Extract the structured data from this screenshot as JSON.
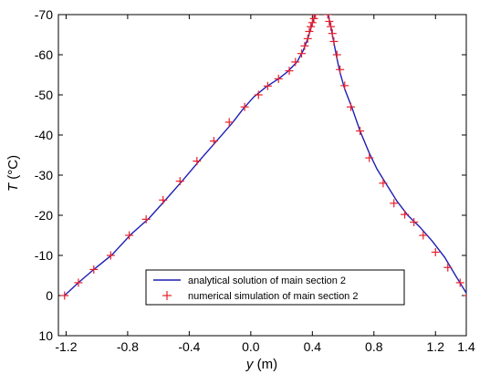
{
  "chart_data": {
    "type": "line",
    "xlabel_var": "y",
    "xlabel_unit": " (m)",
    "ylabel_var": "T",
    "ylabel_unit": " (°C)",
    "xlim": [
      -1.25,
      1.4
    ],
    "ylim": [
      10,
      -70
    ],
    "xticks": [
      -1.2,
      -0.8,
      -0.4,
      0.0,
      0.4,
      0.8,
      1.2,
      1.4
    ],
    "xtick_labels": [
      "-1.2",
      "-0.8",
      "-0.4",
      "0.0",
      "0.4",
      "0.8",
      "1.2",
      "1.4"
    ],
    "yticks": [
      -70,
      -60,
      -50,
      -40,
      -30,
      -20,
      -10,
      0,
      10
    ],
    "ytick_labels": [
      "-70",
      "-60",
      "-50",
      "-40",
      "-30",
      "-20",
      "-10",
      "0",
      "10"
    ],
    "legend_position": "bottom-center",
    "series": [
      {
        "name": "analytical solution of main section 2",
        "style": "line",
        "color": "#1f1fb4",
        "segments": [
          [
            [
              -1.21,
              0
            ],
            [
              -1.12,
              -3.2
            ],
            [
              -1.02,
              -6.5
            ],
            [
              -0.9,
              -10.2
            ],
            [
              -0.78,
              -15.2
            ],
            [
              -0.66,
              -19.3
            ],
            [
              -0.55,
              -24
            ],
            [
              -0.44,
              -28.8
            ],
            [
              -0.33,
              -33.8
            ],
            [
              -0.22,
              -38.6
            ],
            [
              -0.12,
              -43
            ],
            [
              -0.05,
              -46.5
            ],
            [
              0.02,
              -49.5
            ],
            [
              0.1,
              -52
            ],
            [
              0.18,
              -54
            ],
            [
              0.24,
              -55.8
            ],
            [
              0.3,
              -58.2
            ],
            [
              0.34,
              -61
            ],
            [
              0.37,
              -64
            ],
            [
              0.39,
              -66.5
            ],
            [
              0.405,
              -68.5
            ],
            [
              0.42,
              -70.5
            ]
          ],
          [
            [
              0.5,
              -70.5
            ],
            [
              0.52,
              -67
            ],
            [
              0.54,
              -63
            ],
            [
              0.56,
              -59
            ],
            [
              0.58,
              -55.5
            ],
            [
              0.61,
              -51.5
            ],
            [
              0.66,
              -46.5
            ],
            [
              0.71,
              -41
            ],
            [
              0.77,
              -35.5
            ],
            [
              0.82,
              -31.5
            ],
            [
              0.88,
              -27.8
            ],
            [
              0.95,
              -23.5
            ],
            [
              1.02,
              -20
            ],
            [
              1.1,
              -17
            ],
            [
              1.18,
              -13.5
            ],
            [
              1.26,
              -9.5
            ],
            [
              1.33,
              -5
            ],
            [
              1.41,
              0
            ]
          ]
        ]
      },
      {
        "name": "numerical simulation of main section 2",
        "style": "marker",
        "marker": "+",
        "color": "#e8202a",
        "points": [
          [
            -1.21,
            0
          ],
          [
            -1.12,
            -3.2
          ],
          [
            -1.02,
            -6.5
          ],
          [
            -0.91,
            -10
          ],
          [
            -0.79,
            -15
          ],
          [
            -0.68,
            -19
          ],
          [
            -0.57,
            -23.8
          ],
          [
            -0.46,
            -28.5
          ],
          [
            -0.35,
            -33.5
          ],
          [
            -0.24,
            -38.5
          ],
          [
            -0.14,
            -43.2
          ],
          [
            -0.04,
            -47
          ],
          [
            0.05,
            -50
          ],
          [
            0.11,
            -52.2
          ],
          [
            0.18,
            -54
          ],
          [
            0.25,
            -56
          ],
          [
            0.29,
            -58.2
          ],
          [
            0.33,
            -60.3
          ],
          [
            0.35,
            -62.2
          ],
          [
            0.37,
            -64
          ],
          [
            0.38,
            -65.8
          ],
          [
            0.39,
            -67
          ],
          [
            0.4,
            -68
          ],
          [
            0.41,
            -69
          ],
          [
            0.42,
            -70
          ],
          [
            0.5,
            -70
          ],
          [
            0.51,
            -68.3
          ],
          [
            0.52,
            -67
          ],
          [
            0.53,
            -65.3
          ],
          [
            0.54,
            -63.3
          ],
          [
            0.56,
            -60
          ],
          [
            0.58,
            -56.3
          ],
          [
            0.61,
            -52.3
          ],
          [
            0.65,
            -47
          ],
          [
            0.71,
            -41
          ],
          [
            0.77,
            -34.3
          ],
          [
            0.86,
            -28
          ],
          [
            0.93,
            -23
          ],
          [
            1.0,
            -20.2
          ],
          [
            1.06,
            -18.3
          ],
          [
            1.12,
            -15
          ],
          [
            1.2,
            -10.8
          ],
          [
            1.28,
            -7
          ],
          [
            1.36,
            -3.2
          ],
          [
            1.41,
            0
          ]
        ]
      }
    ],
    "legend": [
      {
        "label": "analytical solution of main section 2",
        "marker": "line"
      },
      {
        "label": "numerical simulation of main section 2",
        "marker": "+"
      }
    ]
  }
}
